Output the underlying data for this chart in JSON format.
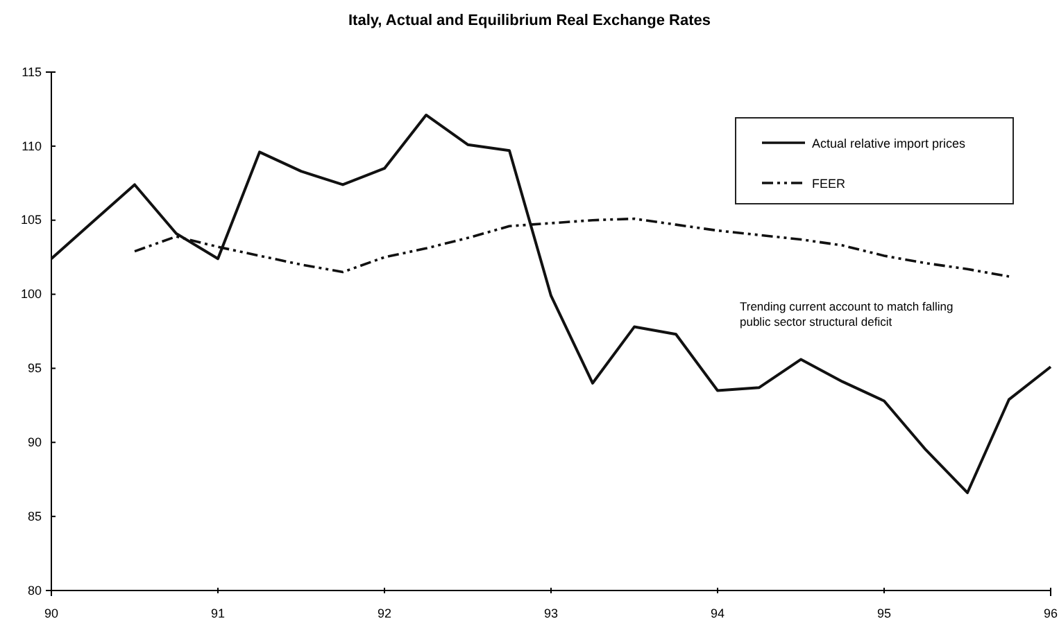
{
  "chart_data": {
    "type": "line",
    "title": "Italy, Actual and Equilibrium Real Exchange Rates",
    "xlim": [
      90,
      96
    ],
    "xticks": [
      90,
      91,
      92,
      93,
      94,
      95,
      96
    ],
    "ylim": [
      80,
      115
    ],
    "yticks": [
      80,
      85,
      90,
      95,
      100,
      105,
      110,
      115
    ],
    "legend": "top right",
    "grid": false,
    "annotations": [
      "Trending current account  to match falling\npublic sector structural deficit"
    ],
    "series": [
      {
        "name": "Actual relative import prices",
        "color": "#111111",
        "line_style": "solid",
        "x": [
          90,
          90.25,
          90.5,
          90.75,
          91,
          91.25,
          91.5,
          91.75,
          92,
          92.25,
          92.5,
          92.75,
          93,
          93.25,
          93.5,
          93.75,
          94,
          94.25,
          94.5,
          94.75,
          95,
          95.25,
          95.5,
          95.75,
          96
        ],
        "values": [
          102.4,
          104.9,
          107.4,
          104.1,
          102.4,
          109.6,
          108.3,
          107.4,
          108.5,
          112.1,
          110.1,
          109.7,
          99.9,
          94.0,
          97.8,
          97.3,
          93.5,
          93.7,
          95.6,
          94.1,
          92.8,
          89.5,
          86.6,
          92.9,
          95.1
        ]
      },
      {
        "name": "FEER",
        "color": "#111111",
        "line_style": "dashdotdot",
        "x": [
          90.5,
          90.75,
          91,
          91.25,
          91.5,
          91.75,
          92,
          92.25,
          92.5,
          92.75,
          93,
          93.25,
          93.5,
          93.75,
          94,
          94.25,
          94.5,
          94.75,
          95,
          95.25,
          95.5,
          95.75
        ],
        "values": [
          102.9,
          103.9,
          103.2,
          102.6,
          102.0,
          101.5,
          102.5,
          103.1,
          103.8,
          104.6,
          104.8,
          105.0,
          105.1,
          104.7,
          104.3,
          104.0,
          103.7,
          103.3,
          102.6,
          102.1,
          101.7,
          101.2
        ]
      }
    ]
  }
}
